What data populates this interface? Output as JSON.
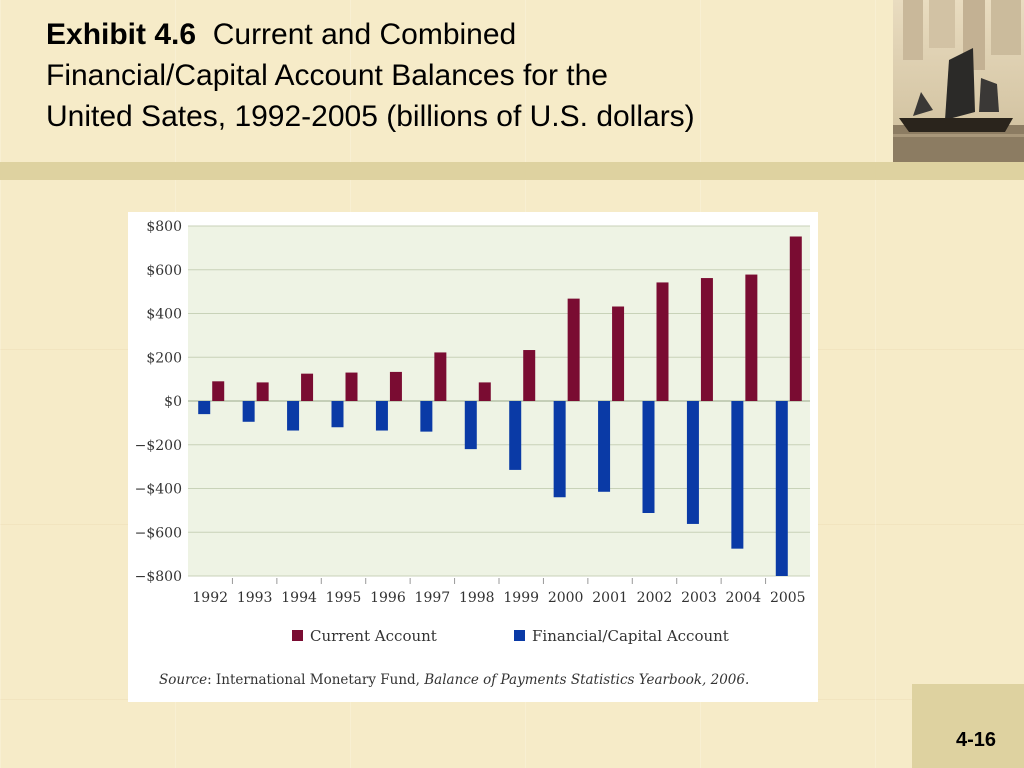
{
  "slide": {
    "title_bold": "Exhibit 4.6",
    "title_lines": [
      "Current and Combined",
      "Financial/Capital Account Balances for the",
      "United Sates, 1992-2005 (billions of U.S. dollars)"
    ],
    "page_number": "4-16"
  },
  "colors": {
    "current_account": "#7a0c32",
    "financial_capital_account": "#0a3aa6",
    "plot_background": "#eef3e4",
    "gridline": "#c8d2b8"
  },
  "chart_data": {
    "type": "bar",
    "categories": [
      "1992",
      "1993",
      "1994",
      "1995",
      "1996",
      "1997",
      "1998",
      "1999",
      "2000",
      "2001",
      "2002",
      "2003",
      "2004",
      "2005"
    ],
    "series": [
      {
        "name": "Current Account",
        "values": [
          90,
          85,
          125,
          130,
          133,
          222,
          85,
          233,
          468,
          432,
          542,
          562,
          578,
          752
        ]
      },
      {
        "name": "Financial/Capital Account",
        "values": [
          -60,
          -95,
          -135,
          -120,
          -135,
          -140,
          -220,
          -315,
          -440,
          -415,
          -512,
          -562,
          -675,
          -800
        ]
      }
    ],
    "ylim": [
      -800,
      800
    ],
    "yticks": [
      800,
      600,
      400,
      200,
      0,
      -200,
      -400,
      -600,
      -800
    ],
    "ytick_labels": [
      "$800",
      "$600",
      "$400",
      "$200",
      "$0",
      "−$200",
      "−$400",
      "−$600",
      "−$800"
    ],
    "legend_position": "bottom",
    "grid": true,
    "source_label": "Source",
    "source_text": ": International Monetary Fund, ",
    "source_publication": "Balance of Payments Statistics Yearbook, 2006."
  }
}
